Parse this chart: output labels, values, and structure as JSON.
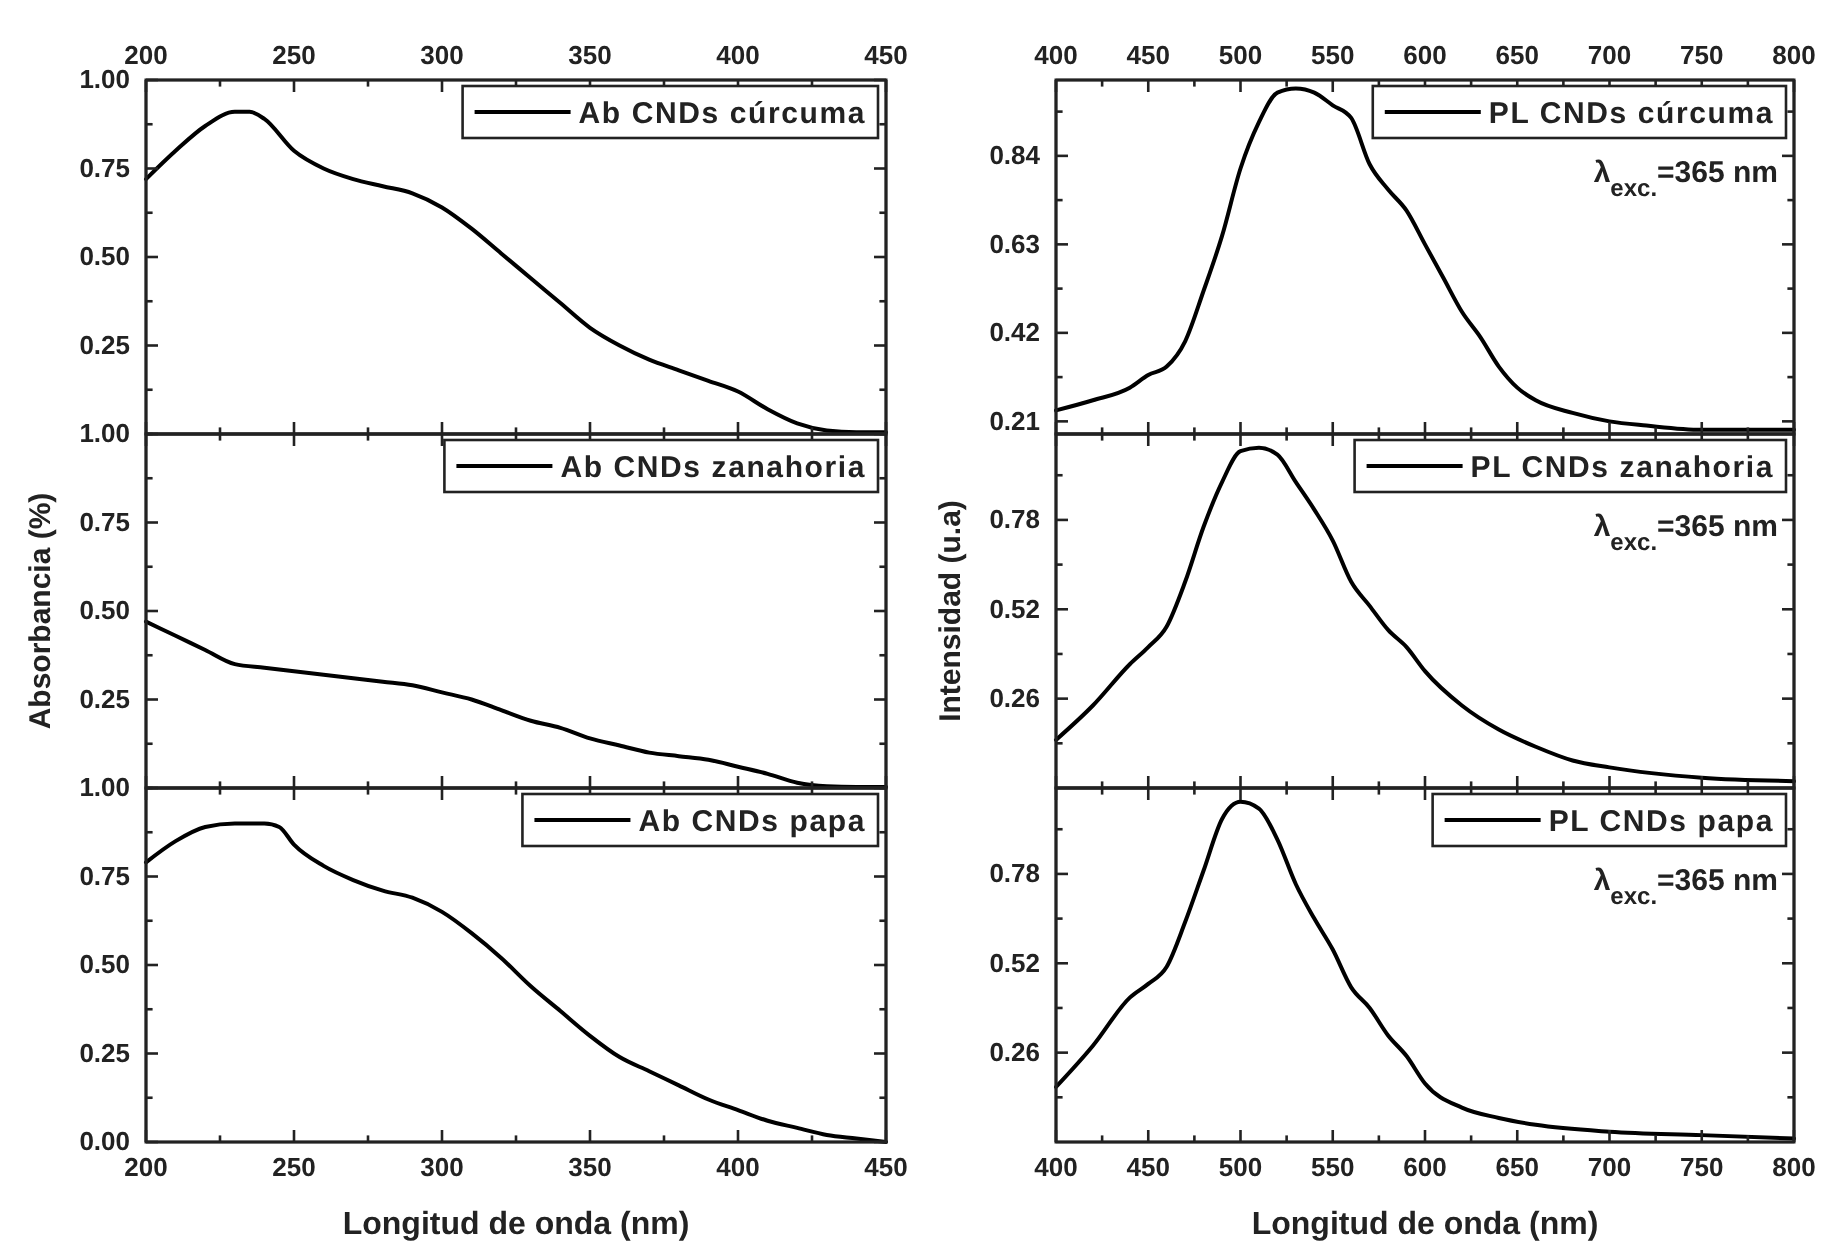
{
  "chart_data": [
    {
      "type": "line",
      "xlim": [
        200,
        450
      ],
      "xticks": [
        200,
        {
          "value": 225,
          "label": null
        },
        250,
        {
          "value": 275,
          "label": null
        },
        300,
        {
          "value": 325,
          "label": null
        },
        350,
        {
          "value": 375,
          "label": null
        },
        400,
        {
          "value": 425,
          "label": null
        },
        450
      ],
      "x2lim": [
        200,
        450
      ],
      "x2ticks": [
        200,
        250,
        300,
        350,
        400,
        450
      ],
      "ylim": [
        0,
        1
      ],
      "yticks": [
        {
          "value": 0,
          "label": null
        },
        {
          "value": 0.125,
          "label": null
        },
        0.25,
        {
          "value": 0.375,
          "label": null
        },
        {
          "value": 0.5,
          "label": "0.50"
        },
        {
          "value": 0.625,
          "label": null
        },
        0.75,
        {
          "value": 0.875,
          "label": null
        },
        {
          "value": 1,
          "label": "1.00"
        }
      ],
      "tick_labels": "y",
      "legend": "top right",
      "grid": false,
      "series": [
        {
          "name": "Ab CNDs cúrcuma",
          "color": "#000000",
          "x": [
            200,
            210,
            220,
            230,
            235,
            240,
            250,
            260,
            270,
            280,
            290,
            300,
            310,
            320,
            330,
            340,
            350,
            360,
            370,
            380,
            390,
            400,
            410,
            420,
            430,
            440,
            450
          ],
          "values": [
            0.72,
            0.8,
            0.87,
            0.91,
            0.91,
            0.89,
            0.8,
            0.75,
            0.72,
            0.7,
            0.68,
            0.64,
            0.58,
            0.51,
            0.44,
            0.37,
            0.3,
            0.25,
            0.21,
            0.18,
            0.15,
            0.12,
            0.07,
            0.03,
            0.01,
            0.005,
            0.005
          ]
        }
      ]
    },
    {
      "type": "line",
      "xlim": [
        400,
        800
      ],
      "xticks": [
        400,
        {
          "value": 425,
          "label": null
        },
        450,
        {
          "value": 475,
          "label": null
        },
        500,
        {
          "value": 525,
          "label": null
        },
        550,
        {
          "value": 575,
          "label": null
        },
        600,
        {
          "value": 625,
          "label": null
        },
        650,
        {
          "value": 675,
          "label": null
        },
        700,
        {
          "value": 725,
          "label": null
        },
        750,
        {
          "value": 775,
          "label": null
        },
        800
      ],
      "x2lim": [
        400,
        800
      ],
      "x2ticks": [
        400,
        450,
        500,
        550,
        600,
        650,
        700,
        750,
        800
      ],
      "ylim": [
        0.18,
        1.02
      ],
      "yticks": [
        0.21,
        {
          "value": 0.315,
          "label": null
        },
        0.42,
        {
          "value": 0.525,
          "label": null
        },
        0.63,
        {
          "value": 0.735,
          "label": null
        },
        0.84,
        {
          "value": 0.945,
          "label": null
        }
      ],
      "tick_labels": "y",
      "legend": "top right",
      "grid": false,
      "annotations": [
        "λ$_{exc.}$=365 nm"
      ],
      "series": [
        {
          "name": "PL CNDs cúrcuma",
          "color": "#000000",
          "x": [
            400,
            420,
            440,
            450,
            460,
            470,
            480,
            490,
            500,
            510,
            520,
            530,
            540,
            550,
            560,
            570,
            580,
            590,
            600,
            610,
            620,
            630,
            640,
            650,
            660,
            680,
            700,
            720,
            750,
            800
          ],
          "values": [
            0.236,
            0.26,
            0.29,
            0.32,
            0.34,
            0.4,
            0.52,
            0.65,
            0.81,
            0.92,
            0.99,
            1.0,
            0.99,
            0.96,
            0.93,
            0.82,
            0.76,
            0.71,
            0.63,
            0.55,
            0.47,
            0.41,
            0.34,
            0.29,
            0.26,
            0.23,
            0.21,
            0.2,
            0.19,
            0.19
          ]
        }
      ]
    },
    {
      "type": "line",
      "xlim": [
        200,
        450
      ],
      "xticks": [
        200,
        {
          "value": 225,
          "label": null
        },
        250,
        {
          "value": 275,
          "label": null
        },
        300,
        {
          "value": 325,
          "label": null
        },
        350,
        {
          "value": 375,
          "label": null
        },
        400,
        {
          "value": 425,
          "label": null
        },
        450
      ],
      "ylim": [
        0,
        1
      ],
      "yticks": [
        {
          "value": 0,
          "label": null
        },
        {
          "value": 0.125,
          "label": null
        },
        0.25,
        {
          "value": 0.375,
          "label": null
        },
        {
          "value": 0.5,
          "label": "0.50"
        },
        {
          "value": 0.625,
          "label": null
        },
        0.75,
        {
          "value": 0.875,
          "label": null
        },
        {
          "value": 1,
          "label": "1.00"
        }
      ],
      "tick_labels": "y",
      "legend": "top right",
      "grid": false,
      "ylabel": "Absorbancia (%)",
      "series": [
        {
          "name": "Ab CNDs zanahoria",
          "color": "#000000",
          "x": [
            200,
            210,
            220,
            230,
            240,
            250,
            260,
            270,
            280,
            290,
            300,
            310,
            320,
            330,
            340,
            350,
            360,
            370,
            380,
            390,
            400,
            410,
            420,
            430,
            440,
            450
          ],
          "values": [
            0.47,
            0.43,
            0.39,
            0.35,
            0.34,
            0.33,
            0.32,
            0.31,
            0.3,
            0.29,
            0.27,
            0.25,
            0.22,
            0.19,
            0.17,
            0.14,
            0.12,
            0.1,
            0.09,
            0.08,
            0.06,
            0.04,
            0.015,
            0.005,
            0.003,
            0.003
          ]
        }
      ]
    },
    {
      "type": "line",
      "xlim": [
        400,
        800
      ],
      "xticks": [
        400,
        {
          "value": 425,
          "label": null
        },
        450,
        {
          "value": 475,
          "label": null
        },
        500,
        {
          "value": 525,
          "label": null
        },
        550,
        {
          "value": 575,
          "label": null
        },
        600,
        {
          "value": 625,
          "label": null
        },
        650,
        {
          "value": 675,
          "label": null
        },
        700,
        {
          "value": 725,
          "label": null
        },
        750,
        {
          "value": 775,
          "label": null
        },
        800
      ],
      "ylim": [
        0,
        1.03
      ],
      "yticks": [
        {
          "value": 0.13,
          "label": null
        },
        0.26,
        {
          "value": 0.39,
          "label": null
        },
        0.52,
        {
          "value": 0.65,
          "label": null
        },
        0.78,
        {
          "value": 0.91,
          "label": null
        }
      ],
      "tick_labels": "y",
      "legend": "top right",
      "grid": false,
      "ylabel": "Intensidad (u.a)",
      "annotations": [
        "λ$_{exc.}$=365 nm"
      ],
      "series": [
        {
          "name": "PL CNDs zanahoria",
          "color": "#000000",
          "x": [
            400,
            420,
            440,
            450,
            460,
            470,
            480,
            490,
            500,
            510,
            520,
            530,
            540,
            550,
            560,
            570,
            580,
            590,
            600,
            620,
            640,
            660,
            680,
            700,
            750,
            800
          ],
          "values": [
            0.14,
            0.24,
            0.36,
            0.41,
            0.47,
            0.6,
            0.76,
            0.89,
            0.98,
            0.99,
            0.97,
            0.89,
            0.81,
            0.72,
            0.6,
            0.53,
            0.46,
            0.41,
            0.34,
            0.24,
            0.17,
            0.12,
            0.08,
            0.06,
            0.03,
            0.02
          ]
        }
      ]
    },
    {
      "type": "line",
      "xlim": [
        200,
        450
      ],
      "xticks": [
        200,
        {
          "value": 225,
          "label": null
        },
        250,
        {
          "value": 275,
          "label": null
        },
        300,
        {
          "value": 325,
          "label": null
        },
        350,
        {
          "value": 375,
          "label": null
        },
        400,
        {
          "value": 425,
          "label": null
        },
        450
      ],
      "ylim": [
        0,
        1
      ],
      "yticks": [
        {
          "value": 0,
          "label": "0.00"
        },
        {
          "value": 0.125,
          "label": null
        },
        0.25,
        {
          "value": 0.375,
          "label": null
        },
        {
          "value": 0.5,
          "label": "0.50"
        },
        {
          "value": 0.625,
          "label": null
        },
        0.75,
        {
          "value": 0.875,
          "label": null
        },
        {
          "value": 1,
          "label": "1.00"
        }
      ],
      "legend": "top right",
      "grid": false,
      "xlabel": "Longitud de onda (nm)",
      "series": [
        {
          "name": "Ab CNDs papa",
          "color": "#000000",
          "x": [
            200,
            210,
            220,
            230,
            240,
            245,
            250,
            260,
            270,
            280,
            290,
            300,
            310,
            320,
            330,
            340,
            350,
            360,
            370,
            380,
            390,
            400,
            410,
            420,
            430,
            440,
            450
          ],
          "values": [
            0.79,
            0.85,
            0.89,
            0.9,
            0.9,
            0.89,
            0.84,
            0.78,
            0.74,
            0.71,
            0.69,
            0.65,
            0.59,
            0.52,
            0.44,
            0.37,
            0.3,
            0.24,
            0.2,
            0.16,
            0.12,
            0.09,
            0.06,
            0.04,
            0.02,
            0.01,
            0.0
          ]
        }
      ]
    },
    {
      "type": "line",
      "xlim": [
        400,
        800
      ],
      "xticks": [
        400,
        {
          "value": 425,
          "label": null
        },
        450,
        {
          "value": 475,
          "label": null
        },
        500,
        {
          "value": 525,
          "label": null
        },
        550,
        {
          "value": 575,
          "label": null
        },
        600,
        {
          "value": 625,
          "label": null
        },
        650,
        {
          "value": 675,
          "label": null
        },
        700,
        {
          "value": 725,
          "label": null
        },
        750,
        {
          "value": 775,
          "label": null
        },
        800
      ],
      "ylim": [
        0,
        1.03
      ],
      "yticks": [
        {
          "value": 0.13,
          "label": null
        },
        0.26,
        {
          "value": 0.39,
          "label": null
        },
        0.52,
        {
          "value": 0.65,
          "label": null
        },
        0.78,
        {
          "value": 0.91,
          "label": null
        }
      ],
      "legend": "top right",
      "grid": false,
      "xlabel": "Longitud de onda (nm)",
      "annotations": [
        "λ$_{exc.}$=365 nm"
      ],
      "series": [
        {
          "name": "PL CNDs papa",
          "color": "#000000",
          "x": [
            400,
            420,
            440,
            450,
            460,
            470,
            480,
            490,
            500,
            510,
            520,
            530,
            540,
            550,
            560,
            570,
            580,
            590,
            600,
            620,
            640,
            660,
            700,
            750,
            800
          ],
          "values": [
            0.16,
            0.28,
            0.42,
            0.46,
            0.51,
            0.64,
            0.79,
            0.94,
            0.99,
            0.97,
            0.88,
            0.75,
            0.65,
            0.56,
            0.45,
            0.39,
            0.31,
            0.25,
            0.17,
            0.1,
            0.07,
            0.05,
            0.03,
            0.02,
            0.01
          ]
        }
      ]
    }
  ]
}
